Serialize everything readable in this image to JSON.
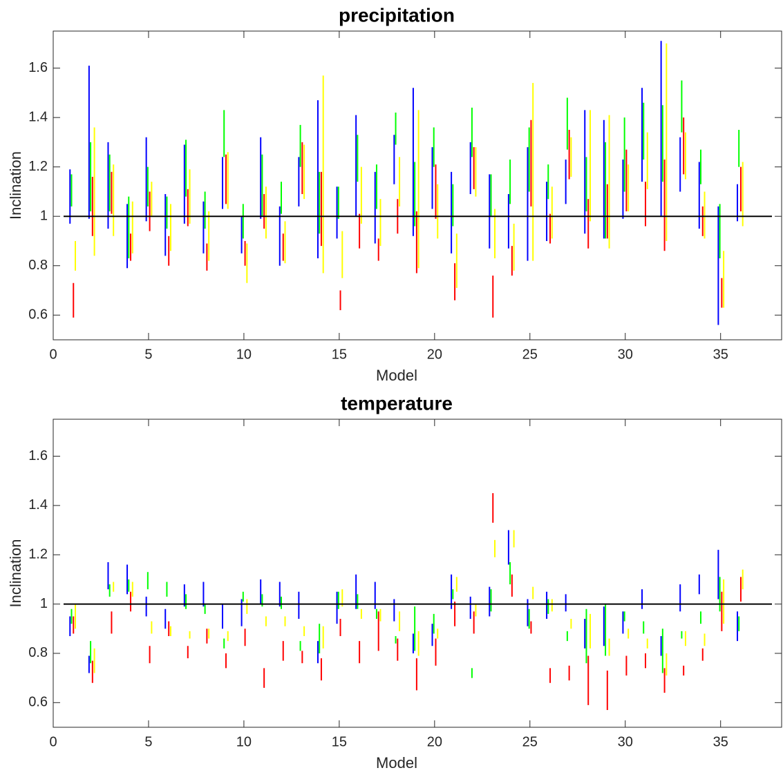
{
  "chart_data": [
    {
      "type": "range",
      "title": "precipitation",
      "xlabel": "Model",
      "ylabel": "Inclination",
      "x": [
        1,
        2,
        3,
        4,
        5,
        6,
        7,
        8,
        9,
        10,
        11,
        12,
        13,
        14,
        15,
        16,
        17,
        18,
        19,
        20,
        21,
        22,
        23,
        24,
        25,
        26,
        27,
        28,
        29,
        30,
        31,
        32,
        33,
        34,
        35,
        36
      ],
      "xlim": [
        0,
        38.2
      ],
      "xticks": [
        0,
        5,
        10,
        15,
        20,
        25,
        30,
        35
      ],
      "ylim": [
        0.5,
        1.75
      ],
      "yticks": [
        0.6,
        0.8,
        1,
        1.2,
        1.4,
        1.6
      ],
      "hline": 1,
      "series": [
        {
          "color": "#0000ff",
          "low": [
            0.97,
            0.99,
            0.95,
            0.79,
            0.98,
            0.84,
            0.97,
            0.85,
            1.03,
            0.85,
            0.99,
            0.8,
            1.04,
            0.83,
            0.91,
            1.0,
            0.89,
            1.13,
            0.92,
            1.03,
            0.85,
            1.09,
            0.87,
            0.87,
            0.82,
            0.9,
            1.05,
            0.93,
            0.91,
            0.99,
            1.14,
            1.0,
            1.1,
            0.95,
            0.56,
            0.98
          ],
          "high": [
            1.19,
            1.61,
            1.3,
            1.05,
            1.32,
            1.09,
            1.29,
            1.06,
            1.24,
            1.0,
            1.32,
            1.04,
            1.24,
            1.47,
            1.12,
            1.41,
            1.18,
            1.33,
            1.52,
            1.28,
            1.18,
            1.3,
            1.17,
            1.09,
            1.28,
            1.14,
            1.23,
            1.43,
            1.39,
            1.23,
            1.52,
            1.71,
            1.32,
            1.22,
            1.04,
            1.13
          ]
        },
        {
          "color": "#00ff00",
          "low": [
            1.04,
            1.02,
            1.02,
            0.83,
            1.04,
            0.95,
            1.08,
            0.95,
            1.24,
            0.91,
            1.0,
            1.01,
            1.2,
            0.93,
            0.99,
            1.14,
            1.03,
            1.29,
            0.96,
            1.2,
            0.96,
            1.24,
            1.0,
            1.05,
            1.1,
            1.07,
            1.27,
            1.02,
            0.91,
            1.1,
            1.23,
            1.14,
            1.34,
            1.13,
            0.83,
            1.2
          ],
          "high": [
            1.17,
            1.3,
            1.25,
            1.08,
            1.2,
            1.08,
            1.31,
            1.1,
            1.43,
            1.05,
            1.25,
            1.14,
            1.37,
            1.18,
            1.12,
            1.33,
            1.21,
            1.42,
            1.22,
            1.36,
            1.13,
            1.44,
            1.17,
            1.23,
            1.36,
            1.21,
            1.48,
            1.24,
            1.3,
            1.4,
            1.46,
            1.45,
            1.55,
            1.27,
            1.05,
            1.35
          ]
        },
        {
          "color": "#ff0000",
          "low": [
            0.59,
            0.92,
            1.01,
            0.82,
            0.94,
            0.8,
            0.96,
            0.78,
            1.05,
            0.8,
            0.95,
            0.82,
            1.09,
            0.88,
            0.62,
            0.87,
            0.82,
            0.93,
            0.77,
            0.99,
            0.66,
            1.11,
            0.59,
            0.76,
            1.04,
            0.89,
            1.15,
            0.87,
            0.91,
            1.02,
            0.96,
            0.86,
            1.17,
            0.92,
            0.63,
            1.02
          ],
          "high": [
            0.73,
            1.16,
            1.18,
            0.93,
            1.1,
            0.92,
            1.11,
            0.89,
            1.25,
            0.9,
            1.09,
            0.93,
            1.3,
            1.18,
            0.7,
            1.01,
            0.91,
            1.07,
            1.02,
            1.21,
            0.81,
            1.28,
            0.76,
            0.88,
            1.39,
            1.01,
            1.35,
            1.07,
            1.13,
            1.27,
            1.14,
            1.23,
            1.4,
            1.04,
            0.75,
            1.2
          ]
        },
        {
          "color": "#ffff00",
          "low": [
            0.78,
            0.84,
            0.92,
            0.85,
            1.0,
            0.86,
            0.97,
            0.82,
            1.03,
            0.73,
            0.91,
            0.81,
            1.07,
            0.77,
            0.75,
            0.97,
            0.88,
            1.04,
            0.79,
            0.91,
            0.71,
            1.08,
            0.83,
            0.78,
            0.82,
            0.91,
            1.16,
            0.98,
            0.87,
            1.02,
            1.11,
            0.9,
            1.15,
            0.91,
            0.63,
            0.96
          ],
          "high": [
            0.9,
            1.36,
            1.21,
            1.06,
            1.14,
            1.05,
            1.19,
            1.02,
            1.26,
            0.89,
            1.12,
            0.98,
            1.29,
            1.57,
            0.94,
            1.2,
            1.07,
            1.24,
            1.43,
            1.13,
            0.93,
            1.28,
            1.03,
            0.97,
            1.54,
            1.12,
            1.32,
            1.43,
            1.41,
            1.21,
            1.34,
            1.7,
            1.34,
            1.1,
            0.86,
            1.22
          ]
        }
      ]
    },
    {
      "type": "range",
      "title": "temperature",
      "xlabel": "Model",
      "ylabel": "Inclination",
      "x": [
        1,
        2,
        3,
        4,
        5,
        6,
        7,
        8,
        9,
        10,
        11,
        12,
        13,
        14,
        15,
        16,
        17,
        18,
        19,
        20,
        21,
        22,
        23,
        24,
        25,
        26,
        27,
        28,
        29,
        30,
        31,
        32,
        33,
        34,
        35,
        36
      ],
      "xlim": [
        0,
        38.2
      ],
      "xticks": [
        0,
        5,
        10,
        15,
        20,
        25,
        30,
        35
      ],
      "ylim": [
        0.5,
        1.75
      ],
      "yticks": [
        0.6,
        0.8,
        1,
        1.2,
        1.4,
        1.6
      ],
      "hline": 1,
      "series": [
        {
          "color": "#0000ff",
          "low": [
            0.87,
            0.72,
            1.06,
            1.04,
            0.95,
            0.9,
            0.99,
            0.99,
            0.9,
            0.91,
            1.0,
            0.99,
            0.94,
            0.76,
            0.92,
            0.98,
            0.98,
            0.93,
            0.8,
            0.83,
            0.98,
            0.94,
            0.95,
            1.16,
            0.91,
            0.94,
            0.97,
            0.82,
            0.83,
            0.88,
            0.98,
            0.79,
            0.97,
            1.04,
            1.02,
            0.85
          ],
          "high": [
            0.95,
            0.79,
            1.17,
            1.16,
            1.03,
            0.98,
            1.08,
            1.09,
            1.0,
            1.02,
            1.1,
            1.09,
            1.05,
            0.85,
            1.05,
            1.12,
            1.09,
            1.02,
            0.88,
            0.92,
            1.12,
            1.03,
            1.07,
            1.3,
            1.02,
            1.05,
            1.04,
            0.94,
            0.99,
            0.97,
            1.06,
            0.87,
            1.08,
            1.12,
            1.22,
            0.97
          ]
        },
        {
          "color": "#00ff00",
          "low": [
            0.92,
            0.76,
            1.03,
            1.05,
            1.06,
            1.03,
            0.98,
            0.96,
            0.82,
            1.01,
            0.99,
            0.98,
            0.81,
            0.8,
            0.98,
            0.98,
            0.94,
            0.84,
            0.81,
            0.88,
            1.02,
            0.7,
            0.97,
            1.08,
            0.9,
            0.96,
            0.85,
            0.76,
            0.79,
            0.93,
            0.88,
            0.72,
            0.86,
            0.92,
            0.97,
            0.89
          ],
          "high": [
            0.98,
            0.85,
            1.08,
            1.1,
            1.13,
            1.09,
            1.04,
            1.0,
            0.86,
            1.05,
            1.04,
            1.03,
            0.85,
            0.92,
            1.05,
            1.04,
            0.98,
            0.87,
            0.99,
            0.96,
            1.06,
            0.74,
            1.06,
            1.17,
            0.98,
            1.02,
            0.89,
            0.98,
            1.0,
            0.97,
            0.93,
            0.9,
            0.89,
            0.97,
            1.11,
            0.95
          ]
        },
        {
          "color": "#ff0000",
          "low": [
            0.88,
            0.68,
            0.88,
            0.97,
            0.76,
            0.87,
            0.78,
            0.84,
            0.74,
            0.83,
            0.66,
            0.77,
            0.76,
            0.69,
            0.87,
            0.76,
            0.81,
            0.77,
            0.65,
            0.75,
            0.91,
            0.88,
            1.33,
            1.03,
            0.88,
            0.68,
            0.69,
            0.59,
            0.57,
            0.71,
            0.74,
            0.64,
            0.71,
            0.77,
            0.89,
            1.01
          ],
          "high": [
            0.95,
            0.77,
            0.97,
            1.05,
            0.83,
            0.93,
            0.83,
            0.9,
            0.8,
            0.9,
            0.74,
            0.85,
            0.81,
            0.78,
            0.94,
            0.85,
            0.97,
            0.86,
            0.78,
            0.86,
            1.01,
            0.97,
            1.45,
            1.12,
            0.93,
            0.74,
            0.75,
            0.79,
            0.73,
            0.79,
            0.8,
            0.74,
            0.75,
            0.82,
            1.05,
            1.11
          ]
        },
        {
          "color": "#ffff00",
          "low": [
            0.9,
            0.72,
            1.05,
            1.03,
            0.88,
            0.87,
            0.86,
            0.86,
            0.85,
            0.96,
            0.91,
            0.91,
            0.87,
            0.82,
            0.99,
            0.94,
            0.93,
            0.89,
            0.79,
            0.86,
            1.05,
            0.95,
            1.19,
            1.23,
            1.02,
            0.97,
            0.9,
            0.82,
            0.79,
            0.86,
            0.82,
            0.71,
            0.83,
            0.83,
            0.92,
            1.06
          ],
          "high": [
            1.0,
            0.82,
            1.09,
            1.09,
            0.93,
            0.91,
            0.89,
            0.9,
            0.89,
            1.02,
            0.95,
            0.95,
            0.91,
            0.91,
            1.06,
            0.98,
            0.98,
            0.97,
            0.89,
            0.9,
            1.11,
            1.0,
            1.26,
            1.3,
            1.07,
            1.02,
            0.94,
            0.96,
            0.86,
            0.9,
            0.86,
            0.8,
            0.89,
            0.88,
            1.1,
            1.14
          ]
        }
      ]
    }
  ]
}
